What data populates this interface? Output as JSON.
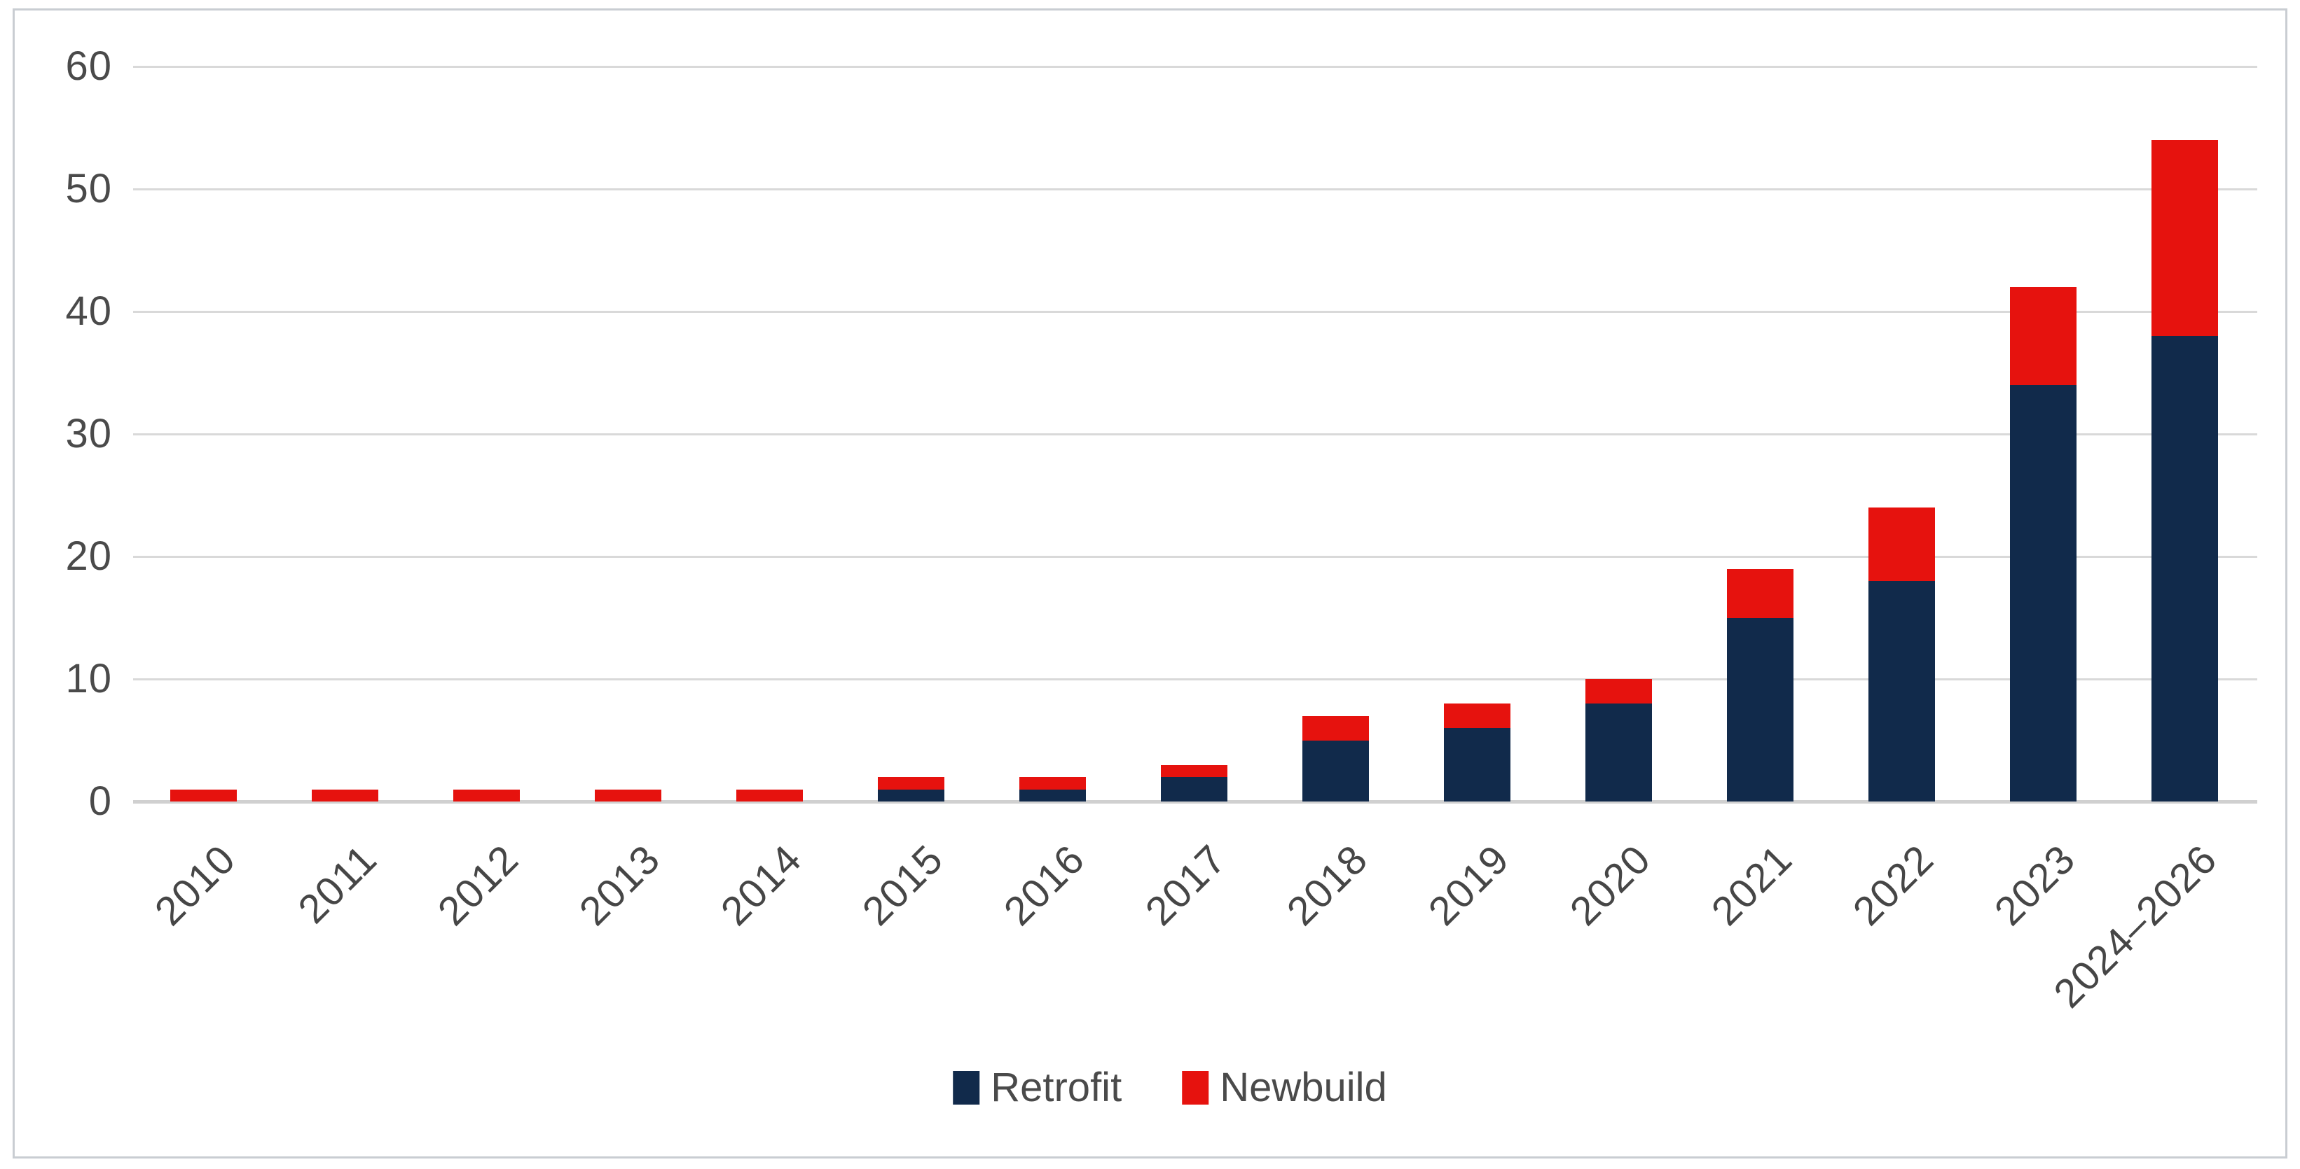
{
  "chart_data": {
    "type": "bar",
    "stacked": true,
    "categories": [
      "2010",
      "2011",
      "2012",
      "2013",
      "2014",
      "2015",
      "2016",
      "2017",
      "2018",
      "2019",
      "2020",
      "2021",
      "2022",
      "2023",
      "2024–2026"
    ],
    "series": [
      {
        "name": "Retrofit",
        "color": "#112a4b",
        "values": [
          0,
          0,
          0,
          0,
          0,
          1,
          1,
          2,
          5,
          6,
          8,
          15,
          18,
          34,
          38
        ]
      },
      {
        "name": "Newbuild",
        "color": "#e6120e",
        "values": [
          1,
          1,
          1,
          1,
          1,
          1,
          1,
          1,
          2,
          2,
          2,
          4,
          6,
          8,
          16
        ]
      }
    ],
    "totals": [
      1,
      1,
      1,
      1,
      1,
      2,
      2,
      3,
      7,
      8,
      10,
      19,
      24,
      42,
      54
    ],
    "title": "",
    "xlabel": "",
    "ylabel": "",
    "ylim": [
      0,
      60
    ],
    "yticks": [
      "0",
      "10",
      "20",
      "30",
      "40",
      "50",
      "60"
    ],
    "grid": true,
    "legend_position": "bottom-center"
  },
  "legend": {
    "items": [
      {
        "label": "Retrofit",
        "color": "#112a4b"
      },
      {
        "label": "Newbuild",
        "color": "#e6120e"
      }
    ]
  },
  "colors": {
    "retrofit": "#112a4b",
    "newbuild": "#e6120e",
    "gridline": "#d9d9d9",
    "axis_baseline": "#d0d0d0",
    "label_text": "#4a4a4a",
    "frame_border": "#c9cdd2",
    "background": "#ffffff"
  }
}
